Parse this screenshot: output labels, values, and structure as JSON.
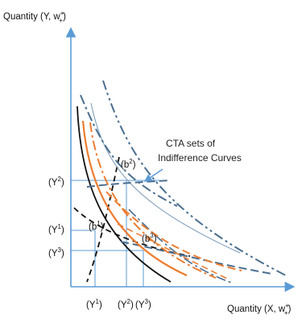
{
  "axes": {
    "y_label": "Quantity (Y, w",
    "y_label_sup": "+",
    "y_label_sub": "+",
    "x_label": "Quantity (X, w",
    "x_label_sup": "+",
    "x_label_sub": "+"
  },
  "annotation": {
    "line1": "CTA sets of",
    "line2": "Indifference  Curves"
  },
  "y_ticks": [
    {
      "base": "(Y",
      "sup": "2",
      "close": ")"
    },
    {
      "base": "(Y",
      "sup": "1",
      "close": ")"
    },
    {
      "base": "(Y",
      "sup": "3",
      "close": ")"
    }
  ],
  "x_ticks": [
    {
      "base": "(Y",
      "sup": "1",
      "close": ")"
    },
    {
      "base": "(Y",
      "sup": "2",
      "close": ")"
    },
    {
      "base": "(Y",
      "sup": "3",
      "close": ")"
    }
  ],
  "points": [
    {
      "base": "(b",
      "sup": "1",
      "close": ")"
    },
    {
      "base": "(b",
      "sup": "2",
      "close": ")"
    },
    {
      "base": "(b",
      "sup": "3",
      "close": ")"
    }
  ],
  "colors": {
    "axis": "#5b9bd5",
    "steel": "#4a6f8f",
    "steel_light": "#7a9bb8",
    "orange": "#ed7d31",
    "black": "#111111"
  }
}
